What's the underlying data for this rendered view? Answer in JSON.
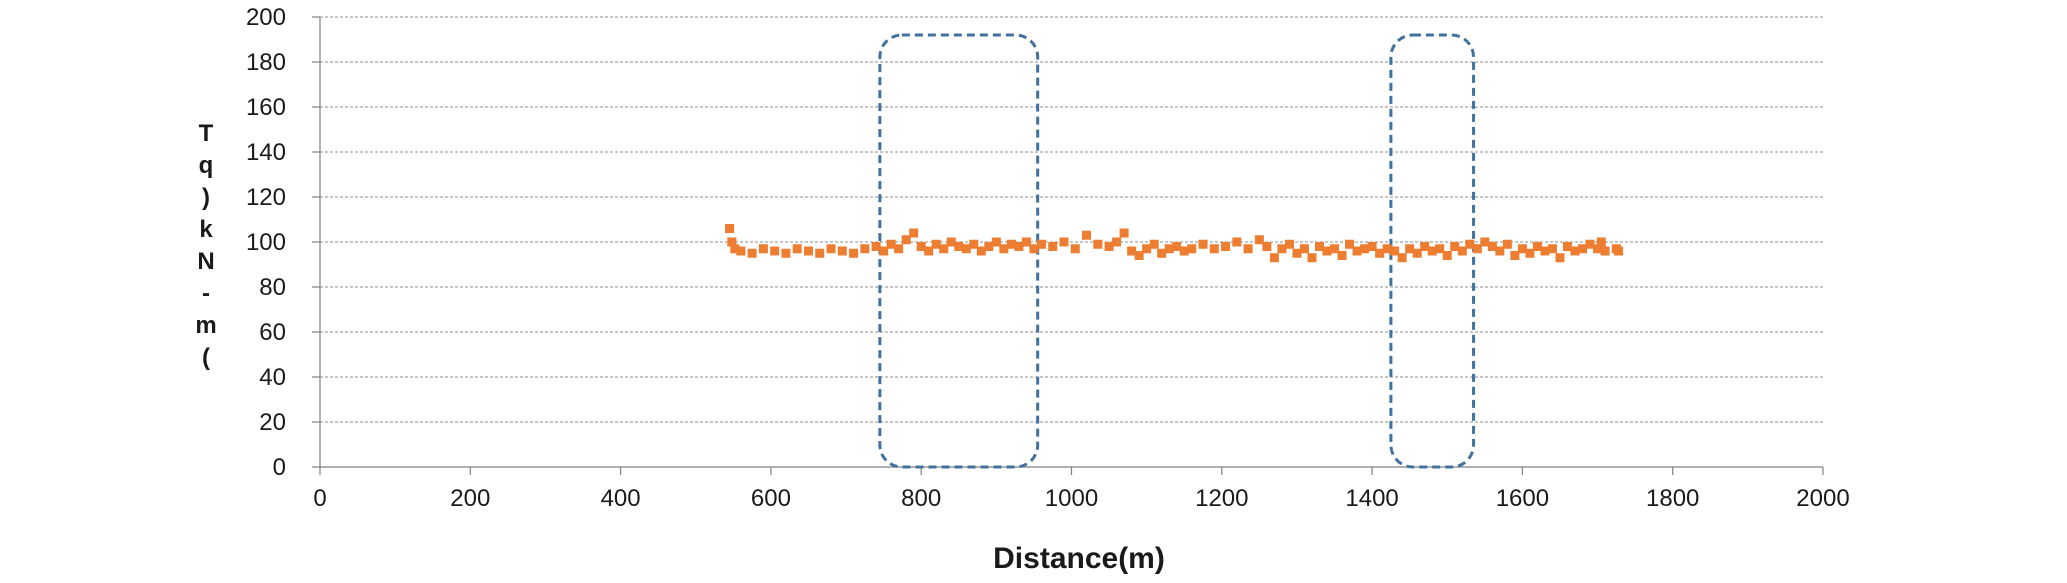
{
  "chart_data": {
    "type": "scatter",
    "xlabel": "Distance(m)",
    "ylabel_chars": [
      "T",
      "q",
      ")",
      "k",
      "N",
      "-",
      "m",
      "("
    ],
    "xlim": [
      0,
      2000
    ],
    "ylim": [
      0,
      200
    ],
    "x_ticks": [
      "0",
      "200",
      "400",
      "600",
      "800",
      "1000",
      "1200",
      "1400",
      "1600",
      "1800",
      "2000"
    ],
    "y_ticks": [
      "0",
      "20",
      "40",
      "60",
      "80",
      "100",
      "120",
      "140",
      "160",
      "180",
      "200"
    ],
    "grid": true,
    "legend": "none",
    "series_color": "#ED7D31",
    "highlight_color": "#41719C",
    "series": [
      {
        "points": [
          [
            545,
            106
          ],
          [
            548,
            100
          ],
          [
            552,
            97
          ],
          [
            560,
            96
          ],
          [
            575,
            95
          ],
          [
            590,
            97
          ],
          [
            605,
            96
          ],
          [
            620,
            95
          ],
          [
            635,
            97
          ],
          [
            650,
            96
          ],
          [
            665,
            95
          ],
          [
            680,
            97
          ],
          [
            695,
            96
          ],
          [
            710,
            95
          ],
          [
            725,
            97
          ],
          [
            740,
            98
          ],
          [
            750,
            96
          ],
          [
            760,
            99
          ],
          [
            770,
            97
          ],
          [
            780,
            101
          ],
          [
            790,
            104
          ],
          [
            800,
            98
          ],
          [
            810,
            96
          ],
          [
            820,
            99
          ],
          [
            830,
            97
          ],
          [
            840,
            100
          ],
          [
            850,
            98
          ],
          [
            860,
            97
          ],
          [
            870,
            99
          ],
          [
            880,
            96
          ],
          [
            890,
            98
          ],
          [
            900,
            100
          ],
          [
            910,
            97
          ],
          [
            920,
            99
          ],
          [
            930,
            98
          ],
          [
            940,
            100
          ],
          [
            950,
            97
          ],
          [
            960,
            99
          ],
          [
            975,
            98
          ],
          [
            990,
            100
          ],
          [
            1005,
            97
          ],
          [
            1020,
            103
          ],
          [
            1035,
            99
          ],
          [
            1050,
            98
          ],
          [
            1060,
            100
          ],
          [
            1070,
            104
          ],
          [
            1080,
            96
          ],
          [
            1090,
            94
          ],
          [
            1100,
            97
          ],
          [
            1110,
            99
          ],
          [
            1120,
            95
          ],
          [
            1130,
            97
          ],
          [
            1140,
            98
          ],
          [
            1150,
            96
          ],
          [
            1160,
            97
          ],
          [
            1175,
            99
          ],
          [
            1190,
            97
          ],
          [
            1205,
            98
          ],
          [
            1220,
            100
          ],
          [
            1235,
            97
          ],
          [
            1250,
            101
          ],
          [
            1260,
            98
          ],
          [
            1270,
            93
          ],
          [
            1280,
            97
          ],
          [
            1290,
            99
          ],
          [
            1300,
            95
          ],
          [
            1310,
            97
          ],
          [
            1320,
            93
          ],
          [
            1330,
            98
          ],
          [
            1340,
            96
          ],
          [
            1350,
            97
          ],
          [
            1360,
            94
          ],
          [
            1370,
            99
          ],
          [
            1380,
            96
          ],
          [
            1390,
            97
          ],
          [
            1400,
            98
          ],
          [
            1410,
            95
          ],
          [
            1420,
            97
          ],
          [
            1430,
            96
          ],
          [
            1440,
            93
          ],
          [
            1450,
            97
          ],
          [
            1460,
            95
          ],
          [
            1470,
            98
          ],
          [
            1480,
            96
          ],
          [
            1490,
            97
          ],
          [
            1500,
            94
          ],
          [
            1510,
            98
          ],
          [
            1520,
            96
          ],
          [
            1530,
            99
          ],
          [
            1540,
            97
          ],
          [
            1550,
            100
          ],
          [
            1560,
            98
          ],
          [
            1570,
            96
          ],
          [
            1580,
            99
          ],
          [
            1590,
            94
          ],
          [
            1600,
            97
          ],
          [
            1610,
            95
          ],
          [
            1620,
            98
          ],
          [
            1630,
            96
          ],
          [
            1640,
            97
          ],
          [
            1650,
            93
          ],
          [
            1660,
            98
          ],
          [
            1670,
            96
          ],
          [
            1680,
            97
          ],
          [
            1690,
            99
          ],
          [
            1700,
            97
          ],
          [
            1705,
            100
          ],
          [
            1710,
            96
          ],
          [
            1725,
            97
          ],
          [
            1728,
            96
          ]
        ]
      }
    ],
    "highlight_regions": [
      {
        "x_range": [
          745,
          955
        ],
        "y_range": [
          0,
          192
        ]
      },
      {
        "x_range": [
          1425,
          1535
        ],
        "y_range": [
          0,
          192
        ]
      }
    ]
  }
}
